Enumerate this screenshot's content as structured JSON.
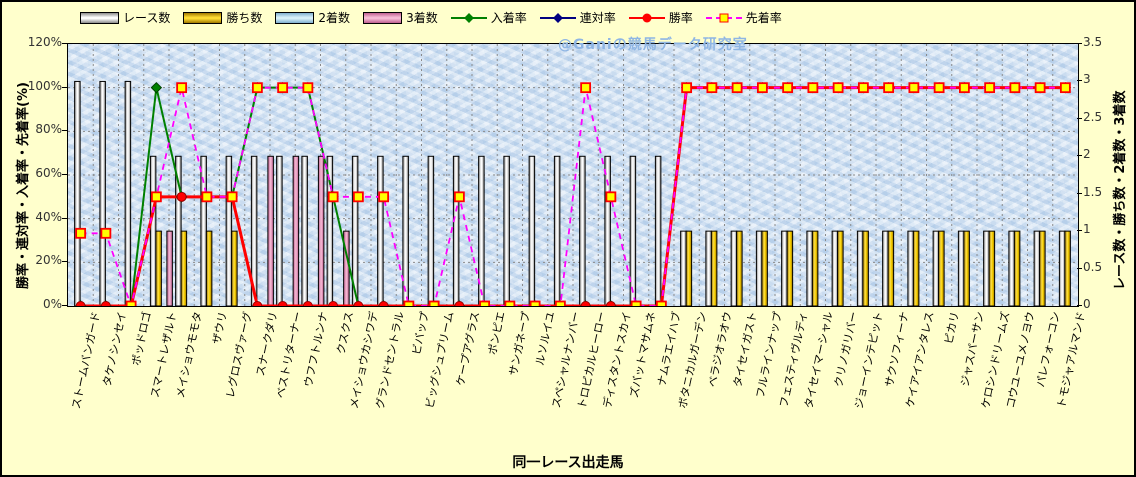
{
  "watermark": "@Ganiの競馬データ研究室",
  "axes": {
    "left_title": "勝率・連対率・入着率・先着率(%)",
    "right_title": "レース数・勝ち数・2着数・3着数",
    "x_title": "同一レース出走馬",
    "left_ticks": [
      "0%",
      "20%",
      "40%",
      "60%",
      "80%",
      "100%",
      "120%"
    ],
    "right_ticks": [
      "0",
      "0.5",
      "1",
      "1.5",
      "2",
      "2.5",
      "3",
      "3.5"
    ]
  },
  "legend": [
    {
      "label": "レース数",
      "type": "bar",
      "color": "#FFFFFF",
      "edge": "#8C8C8C"
    },
    {
      "label": "勝ち数",
      "type": "bar",
      "color": "#FFDD33",
      "edge": "#A07800"
    },
    {
      "label": "2着数",
      "type": "bar",
      "color": "#D9F1FA",
      "edge": "#7FAFD0"
    },
    {
      "label": "3着数",
      "type": "bar",
      "color": "#F7BCD6",
      "edge": "#C06090"
    },
    {
      "label": "入着率",
      "type": "line",
      "color": "#008000",
      "marker": "diamond"
    },
    {
      "label": "連対率",
      "type": "line",
      "color": "#000080",
      "marker": "diamond"
    },
    {
      "label": "勝率",
      "type": "line",
      "color": "#FF0000",
      "marker": "circle"
    },
    {
      "label": "先着率",
      "type": "dashed",
      "color": "#FF00FF",
      "marker": "square",
      "marker_fill": "#FFFF00",
      "marker_edge": "#FF0000"
    }
  ],
  "chart_data": {
    "type": "bar",
    "subtype": "grouped-bars-with-lines",
    "left_axis_range": [
      0,
      120
    ],
    "right_axis_range": [
      0,
      3.5
    ],
    "grid": true,
    "legend_position": "top",
    "categories": [
      "ストームバンガード",
      "タケノシンセイ",
      "ポッドロゴ",
      "スマートレザルト",
      "メイショウモモタ",
      "ザウリ",
      "レグロスヴァーグ",
      "スナークダリ",
      "ベストリターナー",
      "ウフフトルンナ",
      "クスクス",
      "メイショウカシワデ",
      "グランドセントラル",
      "ビバップ",
      "ビッグシュプリーム",
      "ケープアグラス",
      "ポンピエ",
      "サンガネープ",
      "ルソルイユ",
      "スペシャルナンバー",
      "トロピカルヒーロー",
      "ディスタントスカイ",
      "ズバットマサムネ",
      "ナムラエイハブ",
      "ボタニカルガーデン",
      "ベラジオラオウ",
      "タイセイガスト",
      "フルラインナップ",
      "フェスティヴルディ",
      "タイセイマーシャル",
      "クリノガリバー",
      "ジョーインテピット",
      "サクソフィーナ",
      "ケイアイアンタレス",
      "ピカリ",
      "ジャスパーサン",
      "ケロシンドリームズ",
      "コウユーユメノヨウ",
      "パレフォーコン",
      "トモジャアルマンド"
    ],
    "series": [
      {
        "name": "レース数",
        "kind": "bar",
        "axis": "right",
        "values": [
          3,
          3,
          3,
          2,
          2,
          2,
          2,
          2,
          2,
          2,
          2,
          2,
          2,
          2,
          2,
          2,
          2,
          2,
          2,
          2,
          2,
          2,
          2,
          2,
          1,
          1,
          1,
          1,
          1,
          1,
          1,
          1,
          1,
          1,
          1,
          1,
          1,
          1,
          1,
          1
        ]
      },
      {
        "name": "勝ち数",
        "kind": "bar",
        "axis": "right",
        "values": [
          0,
          0,
          0,
          1,
          1,
          1,
          1,
          0,
          0,
          0,
          0,
          0,
          0,
          0,
          0,
          0,
          0,
          0,
          0,
          0,
          0,
          0,
          0,
          0,
          1,
          1,
          1,
          1,
          1,
          1,
          1,
          1,
          1,
          1,
          1,
          1,
          1,
          1,
          1,
          1
        ]
      },
      {
        "name": "2着数",
        "kind": "bar",
        "axis": "right",
        "values": [
          0,
          0,
          0,
          0,
          0,
          0,
          0,
          0,
          0,
          0,
          0,
          0,
          0,
          0,
          0,
          0,
          0,
          0,
          0,
          0,
          0,
          0,
          0,
          0,
          0,
          0,
          0,
          0,
          0,
          0,
          0,
          0,
          0,
          0,
          0,
          0,
          0,
          0,
          0,
          0
        ]
      },
      {
        "name": "3着数",
        "kind": "bar",
        "axis": "right",
        "values": [
          0,
          0,
          0,
          1,
          0,
          0,
          0,
          2,
          2,
          2,
          1,
          0,
          0,
          0,
          0,
          0,
          0,
          0,
          0,
          0,
          0,
          0,
          0,
          0,
          0,
          0,
          0,
          0,
          0,
          0,
          0,
          0,
          0,
          0,
          0,
          0,
          0,
          0,
          0,
          0
        ]
      },
      {
        "name": "入着率",
        "kind": "line",
        "axis": "left",
        "values": [
          0,
          0,
          0,
          100,
          50,
          50,
          50,
          100,
          100,
          100,
          50,
          0,
          0,
          0,
          0,
          0,
          0,
          0,
          0,
          0,
          0,
          0,
          0,
          0,
          100,
          100,
          100,
          100,
          100,
          100,
          100,
          100,
          100,
          100,
          100,
          100,
          100,
          100,
          100,
          100
        ]
      },
      {
        "name": "連対率",
        "kind": "line",
        "axis": "left",
        "values": [
          0,
          0,
          0,
          50,
          50,
          50,
          50,
          0,
          0,
          0,
          0,
          0,
          0,
          0,
          0,
          0,
          0,
          0,
          0,
          0,
          0,
          0,
          0,
          0,
          100,
          100,
          100,
          100,
          100,
          100,
          100,
          100,
          100,
          100,
          100,
          100,
          100,
          100,
          100,
          100
        ]
      },
      {
        "name": "勝率",
        "kind": "line",
        "axis": "left",
        "values": [
          0,
          0,
          0,
          50,
          50,
          50,
          50,
          0,
          0,
          0,
          0,
          0,
          0,
          0,
          0,
          0,
          0,
          0,
          0,
          0,
          0,
          0,
          0,
          0,
          100,
          100,
          100,
          100,
          100,
          100,
          100,
          100,
          100,
          100,
          100,
          100,
          100,
          100,
          100,
          100
        ]
      },
      {
        "name": "先着率",
        "kind": "dashed-line",
        "axis": "left",
        "values": [
          33.3,
          33.3,
          0,
          50,
          100,
          50,
          50,
          100,
          100,
          100,
          50,
          50,
          50,
          0,
          0,
          50,
          0,
          0,
          0,
          0,
          100,
          50,
          0,
          0,
          100,
          100,
          100,
          100,
          100,
          100,
          100,
          100,
          100,
          100,
          100,
          100,
          100,
          100,
          100,
          100
        ]
      }
    ]
  }
}
